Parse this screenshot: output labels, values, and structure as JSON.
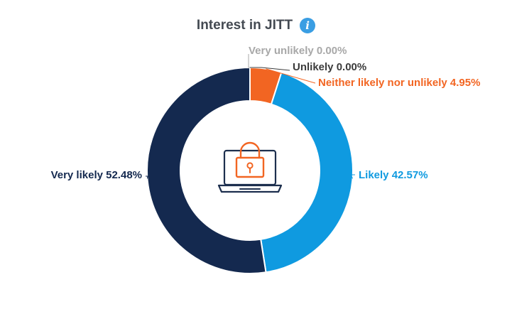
{
  "title": "Interest in JITT",
  "info_icon": "info-icon",
  "center_icon": "laptop-lock-icon",
  "colors": {
    "very_unlikely": "#a8a8a8",
    "unlikely": "#3b3b3b",
    "neutral": "#f26522",
    "likely": "#0f9ae0",
    "very_likely": "#14294f",
    "icon_lock": "#f26522",
    "icon_laptop": "#1d2f4e"
  },
  "chart_data": {
    "type": "pie",
    "variant": "donut",
    "title": "Interest in JITT",
    "slices": [
      {
        "name": "Very unlikely",
        "value": 0.0,
        "label": "Very unlikely 0.00%",
        "color": "#a8a8a8"
      },
      {
        "name": "Unlikely",
        "value": 0.0,
        "label": "Unlikely 0.00%",
        "color": "#3b3b3b"
      },
      {
        "name": "Neither likely nor unlikely",
        "value": 4.95,
        "label": "Neither likely nor unlikely 4.95%",
        "color": "#f26522"
      },
      {
        "name": "Likely",
        "value": 42.57,
        "label": "Likely 42.57%",
        "color": "#0f9ae0"
      },
      {
        "name": "Very likely",
        "value": 52.48,
        "label": "Very likely 52.48%",
        "color": "#14294f"
      }
    ]
  }
}
